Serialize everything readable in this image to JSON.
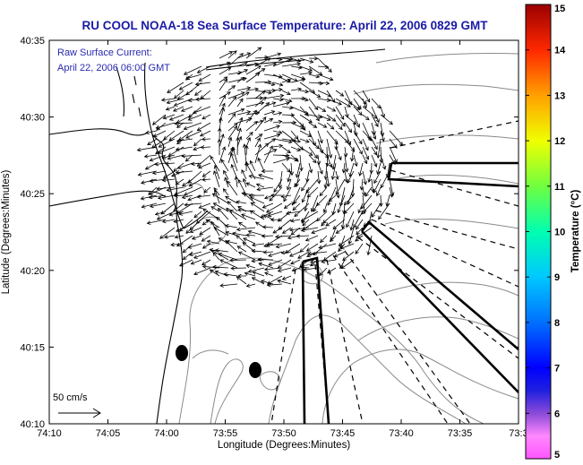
{
  "title": "RU COOL  NOAA-18  Sea Surface Temperature:  April 22, 2006 0829 GMT",
  "overlay": {
    "line1": "Raw Surface Current:",
    "line2": "April 22, 2006 06:00 GMT"
  },
  "scale_label": "50 cm/s",
  "axes": {
    "xlabel": "Longitude (Degrees:Minutes)",
    "ylabel": "Latitude (Degrees:Minutes)",
    "xticks": [
      "74:10",
      "74:05",
      "74:00",
      "73:55",
      "73:50",
      "73:45",
      "73:40",
      "73:35",
      "73:3"
    ],
    "yticks": [
      "40:35",
      "40:30",
      "40:25",
      "40:20",
      "40:15",
      "40:10"
    ]
  },
  "colorbar": {
    "label": "Temperature (°C)",
    "ticks": [
      "15",
      "14",
      "13",
      "12",
      "11",
      "10",
      "9",
      "8",
      "7",
      "6",
      "5"
    ],
    "range": [
      5,
      15
    ]
  },
  "colors": {
    "title": "#1a1aa6",
    "overlay_text": "#2a2ab0",
    "coast": "#000000",
    "bathymetry": "#8a8a8a"
  }
}
